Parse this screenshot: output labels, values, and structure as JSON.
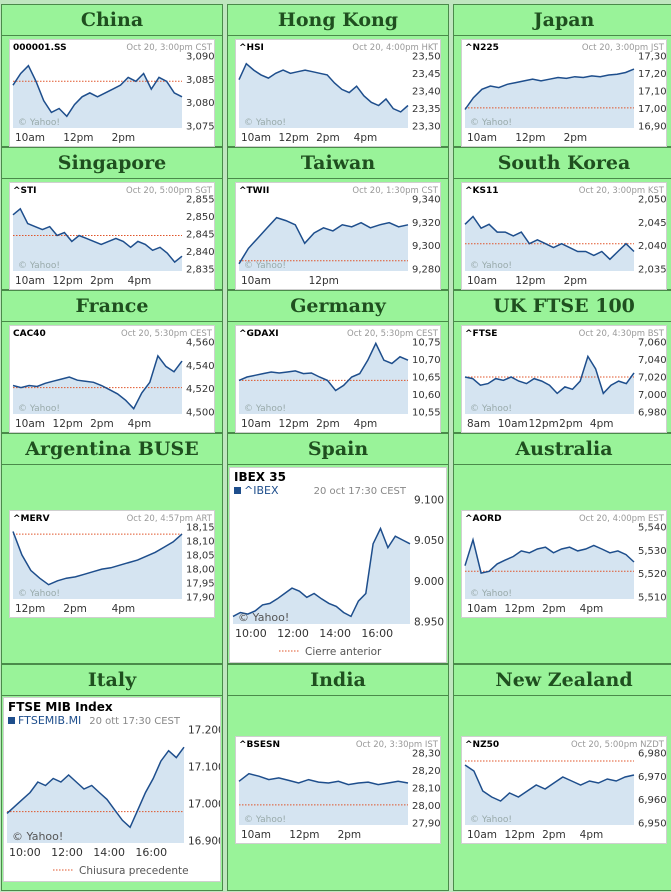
{
  "markets": [
    {
      "title": "China",
      "chart_data": {
        "type": "line",
        "ticker": "000001.SS",
        "timestamp": "Oct 20, 3:00pm CST",
        "x_ticks": [
          "10am",
          "12pm",
          "2pm"
        ],
        "y_ticks": [
          "3,090",
          "3,085",
          "3,080",
          "3,075"
        ],
        "ylim": [
          3073,
          3092
        ],
        "prev_close": 3085,
        "watermark": "© Yahoo!",
        "values": [
          3084,
          3087,
          3089,
          3085,
          3080,
          3077,
          3078,
          3076,
          3079,
          3081,
          3082,
          3081,
          3082,
          3083,
          3084,
          3086,
          3085,
          3087,
          3083,
          3086,
          3085,
          3082,
          3081
        ]
      }
    },
    {
      "title": "Hong Kong",
      "chart_data": {
        "type": "line",
        "ticker": "^HSI",
        "timestamp": "Oct 20, 4:00pm HKT",
        "x_ticks": [
          "10am",
          "12pm",
          "2pm",
          "4pm"
        ],
        "y_ticks": [
          "23,500",
          "23,450",
          "23,400",
          "23,350",
          "23,300"
        ],
        "ylim": [
          23290,
          23520
        ],
        "prev_close": null,
        "watermark": "© Yahoo!",
        "values": [
          23440,
          23490,
          23470,
          23455,
          23445,
          23460,
          23470,
          23460,
          23465,
          23470,
          23465,
          23460,
          23455,
          23430,
          23410,
          23400,
          23420,
          23390,
          23370,
          23360,
          23380,
          23350,
          23340,
          23360
        ]
      }
    },
    {
      "title": "Japan",
      "chart_data": {
        "type": "line",
        "ticker": "^N225",
        "timestamp": "Oct 20, 3:00pm JST",
        "x_ticks": [
          "10am",
          "12pm",
          "2pm"
        ],
        "y_ticks": [
          "17,300",
          "17,200",
          "17,100",
          "17,000",
          "16,900"
        ],
        "ylim": [
          16880,
          17320
        ],
        "prev_close": 17000,
        "watermark": "© Yahoo!",
        "values": [
          16990,
          17060,
          17110,
          17130,
          17120,
          17140,
          17150,
          17160,
          17170,
          17160,
          17170,
          17180,
          17175,
          17185,
          17180,
          17190,
          17185,
          17195,
          17200,
          17210,
          17230
        ]
      }
    },
    {
      "title": "Singapore",
      "chart_data": {
        "type": "line",
        "ticker": "^STI",
        "timestamp": "Oct 20, 5:00pm SGT",
        "x_ticks": [
          "10am",
          "12pm",
          "2pm",
          "4pm"
        ],
        "y_ticks": [
          "2,855",
          "2,850",
          "2,845",
          "2,840",
          "2,835"
        ],
        "ylim": [
          2833,
          2858
        ],
        "prev_close": 2845,
        "watermark": "© Yahoo!",
        "values": [
          2852,
          2854,
          2849,
          2848,
          2847,
          2848,
          2845,
          2846,
          2843,
          2845,
          2844,
          2843,
          2842,
          2843,
          2844,
          2843,
          2841,
          2843,
          2842,
          2840,
          2841,
          2839,
          2836,
          2838
        ]
      }
    },
    {
      "title": "Taiwan",
      "chart_data": {
        "type": "line",
        "ticker": "^TWII",
        "timestamp": "Oct 20, 1:30pm CST",
        "x_ticks": [
          "10am",
          "12pm"
        ],
        "y_ticks": [
          "9,340",
          "9,320",
          "9,300",
          "9,280"
        ],
        "ylim": [
          9273,
          9345
        ],
        "prev_close": 9283,
        "watermark": "© Yahoo!",
        "values": [
          9280,
          9295,
          9305,
          9315,
          9325,
          9322,
          9318,
          9300,
          9310,
          9315,
          9312,
          9318,
          9316,
          9320,
          9315,
          9318,
          9320,
          9316,
          9318
        ]
      }
    },
    {
      "title": "South Korea",
      "chart_data": {
        "type": "line",
        "ticker": "^KS11",
        "timestamp": "Oct 20, 3:00pm KST",
        "x_ticks": [
          "10am",
          "12pm",
          "2pm"
        ],
        "y_ticks": [
          "2,050",
          "2,045",
          "2,040",
          "2,035"
        ],
        "ylim": [
          2033,
          2052
        ],
        "prev_close": 2040,
        "watermark": "© Yahoo!",
        "values": [
          2045,
          2047,
          2044,
          2045,
          2043,
          2043,
          2042,
          2043,
          2040,
          2041,
          2040,
          2039,
          2040,
          2039,
          2038,
          2038,
          2037,
          2038,
          2036,
          2038,
          2040,
          2038
        ]
      }
    },
    {
      "title": "France",
      "chart_data": {
        "type": "line",
        "ticker": "CAC40",
        "timestamp": "Oct 20, 5:30pm CEST",
        "x_ticks": [
          "10am",
          "12pm",
          "2pm",
          "4pm"
        ],
        "y_ticks": [
          "4,560",
          "4,540",
          "4,520",
          "4,500"
        ],
        "ylim": [
          4495,
          4565
        ],
        "prev_close": 4520,
        "watermark": "© Yahoo!",
        "values": [
          4522,
          4520,
          4522,
          4521,
          4524,
          4526,
          4528,
          4530,
          4527,
          4526,
          4525,
          4522,
          4518,
          4514,
          4508,
          4500,
          4515,
          4525,
          4550,
          4540,
          4535,
          4545
        ]
      }
    },
    {
      "title": "Germany",
      "chart_data": {
        "type": "line",
        "ticker": "^GDAXI",
        "timestamp": "Oct 20, 5:30pm CEST",
        "x_ticks": [
          "10am",
          "12pm",
          "2pm",
          "4pm"
        ],
        "y_ticks": [
          "10,750",
          "10,700",
          "10,650",
          "10,600",
          "10,550"
        ],
        "ylim": [
          10540,
          10760
        ],
        "prev_close": 10640,
        "watermark": "© Yahoo!",
        "values": [
          10640,
          10650,
          10655,
          10660,
          10665,
          10662,
          10665,
          10668,
          10660,
          10662,
          10650,
          10640,
          10610,
          10625,
          10650,
          10660,
          10700,
          10750,
          10700,
          10690,
          10710,
          10700
        ]
      }
    },
    {
      "title": "UK FTSE 100",
      "chart_data": {
        "type": "line",
        "ticker": "^FTSE",
        "timestamp": "Oct 20, 4:30pm BST",
        "x_ticks": [
          "8am",
          "10am",
          "12pm",
          "2pm",
          "4pm"
        ],
        "y_ticks": [
          "7,060",
          "7,040",
          "7,020",
          "7,000",
          "6,980"
        ],
        "ylim": [
          6975,
          7065
        ],
        "prev_close": 7020,
        "watermark": "© Yahoo!",
        "values": [
          7020,
          7018,
          7010,
          7012,
          7018,
          7016,
          7020,
          7015,
          7012,
          7018,
          7015,
          7010,
          7000,
          7008,
          7005,
          7015,
          7045,
          7030,
          7000,
          7010,
          7015,
          7012,
          7025
        ]
      }
    },
    {
      "title": "Argentina BUSE",
      "chart_data": {
        "type": "line",
        "ticker": "^MERV",
        "timestamp": "Oct 20, 4:57pm ART",
        "x_ticks": [
          "12pm",
          "2pm",
          "4pm"
        ],
        "y_ticks": [
          "18,150",
          "18,100",
          "18,050",
          "18,000",
          "17,950",
          "17,900"
        ],
        "ylim": [
          17880,
          18165
        ],
        "prev_close": 18130,
        "watermark": "© Yahoo!",
        "values": [
          18140,
          18050,
          17990,
          17960,
          17935,
          17950,
          17960,
          17965,
          17975,
          17985,
          17995,
          18000,
          18010,
          18020,
          18030,
          18045,
          18060,
          18080,
          18100,
          18130
        ]
      }
    },
    {
      "title": "Spain",
      "chart_data": {
        "type": "line",
        "index_title": "IBEX 35",
        "ticker": "^IBEX",
        "timestamp": "20 oct 17:30 CEST",
        "x_ticks": [
          "10:00",
          "12:00",
          "14:00",
          "16:00"
        ],
        "y_ticks": [
          "9.100",
          "9.050",
          "9.000",
          "8.950"
        ],
        "ylim": [
          8945,
          9110
        ],
        "prev_close": null,
        "legend": "Cierre anterior",
        "watermark": "© Yahoo!",
        "values": [
          8955,
          8960,
          8958,
          8962,
          8970,
          8972,
          8978,
          8985,
          8992,
          8988,
          8980,
          8985,
          8978,
          8972,
          8968,
          8960,
          8955,
          8975,
          8985,
          9050,
          9070,
          9045,
          9060,
          9055,
          9050
        ]
      }
    },
    {
      "title": "Australia",
      "chart_data": {
        "type": "line",
        "ticker": "^AORD",
        "timestamp": "Oct 20, 4:00pm EST",
        "x_ticks": [
          "10am",
          "12pm",
          "2pm",
          "4pm"
        ],
        "y_ticks": [
          "5,540",
          "5,530",
          "5,520",
          "5,510"
        ],
        "ylim": [
          5505,
          5545
        ],
        "prev_close": 5520,
        "watermark": "© Yahoo!",
        "values": [
          5523,
          5537,
          5519,
          5520,
          5524,
          5526,
          5528,
          5531,
          5530,
          5532,
          5533,
          5530,
          5532,
          5533,
          5531,
          5532,
          5534,
          5532,
          5530,
          5531,
          5529,
          5525
        ]
      }
    },
    {
      "title": "Italy",
      "chart_data": {
        "type": "line",
        "index_title": "FTSE MIB Index",
        "ticker": "FTSEMIB.MI",
        "timestamp": "20 ott 17:30 CEST",
        "x_ticks": [
          "10:00",
          "12:00",
          "14:00",
          "16:00"
        ],
        "y_ticks": [
          "17.200",
          "17.100",
          "17.000",
          "16.900"
        ],
        "ylim": [
          16885,
          17215
        ],
        "prev_close": 16975,
        "legend": "Chiusura precedente",
        "watermark": "© Yahoo!",
        "values": [
          16970,
          16990,
          17010,
          17030,
          17060,
          17050,
          17070,
          17060,
          17080,
          17060,
          17040,
          17050,
          17030,
          17010,
          16980,
          16950,
          16930,
          16980,
          17030,
          17070,
          17120,
          17150,
          17130,
          17160
        ]
      }
    },
    {
      "title": "India",
      "chart_data": {
        "type": "line",
        "ticker": "^BSESN",
        "timestamp": "Oct 20, 3:30pm IST",
        "x_ticks": [
          "10am",
          "12pm",
          "2pm"
        ],
        "y_ticks": [
          "28,300",
          "28,200",
          "28,100",
          "28,000",
          "27,900"
        ],
        "ylim": [
          27880,
          28320
        ],
        "prev_close": 28000,
        "watermark": "© Yahoo!",
        "values": [
          28140,
          28185,
          28170,
          28150,
          28160,
          28145,
          28130,
          28150,
          28135,
          28130,
          28140,
          28120,
          28130,
          28135,
          28120,
          28130,
          28140,
          28130
        ]
      }
    },
    {
      "title": "New Zealand",
      "chart_data": {
        "type": "line",
        "ticker": "^NZ50",
        "timestamp": "Oct 20, 5:00pm NZDT",
        "x_ticks": [
          "10am",
          "12pm",
          "2pm",
          "4pm"
        ],
        "y_ticks": [
          "6,980",
          "6,970",
          "6,960",
          "6,950"
        ],
        "ylim": [
          6948,
          6985
        ],
        "prev_close": 6980,
        "watermark": "© Yahoo!",
        "values": [
          6978,
          6975,
          6965,
          6962,
          6960,
          6964,
          6962,
          6965,
          6968,
          6966,
          6969,
          6972,
          6970,
          6968,
          6970,
          6969,
          6971,
          6970,
          6972,
          6973
        ]
      }
    }
  ]
}
